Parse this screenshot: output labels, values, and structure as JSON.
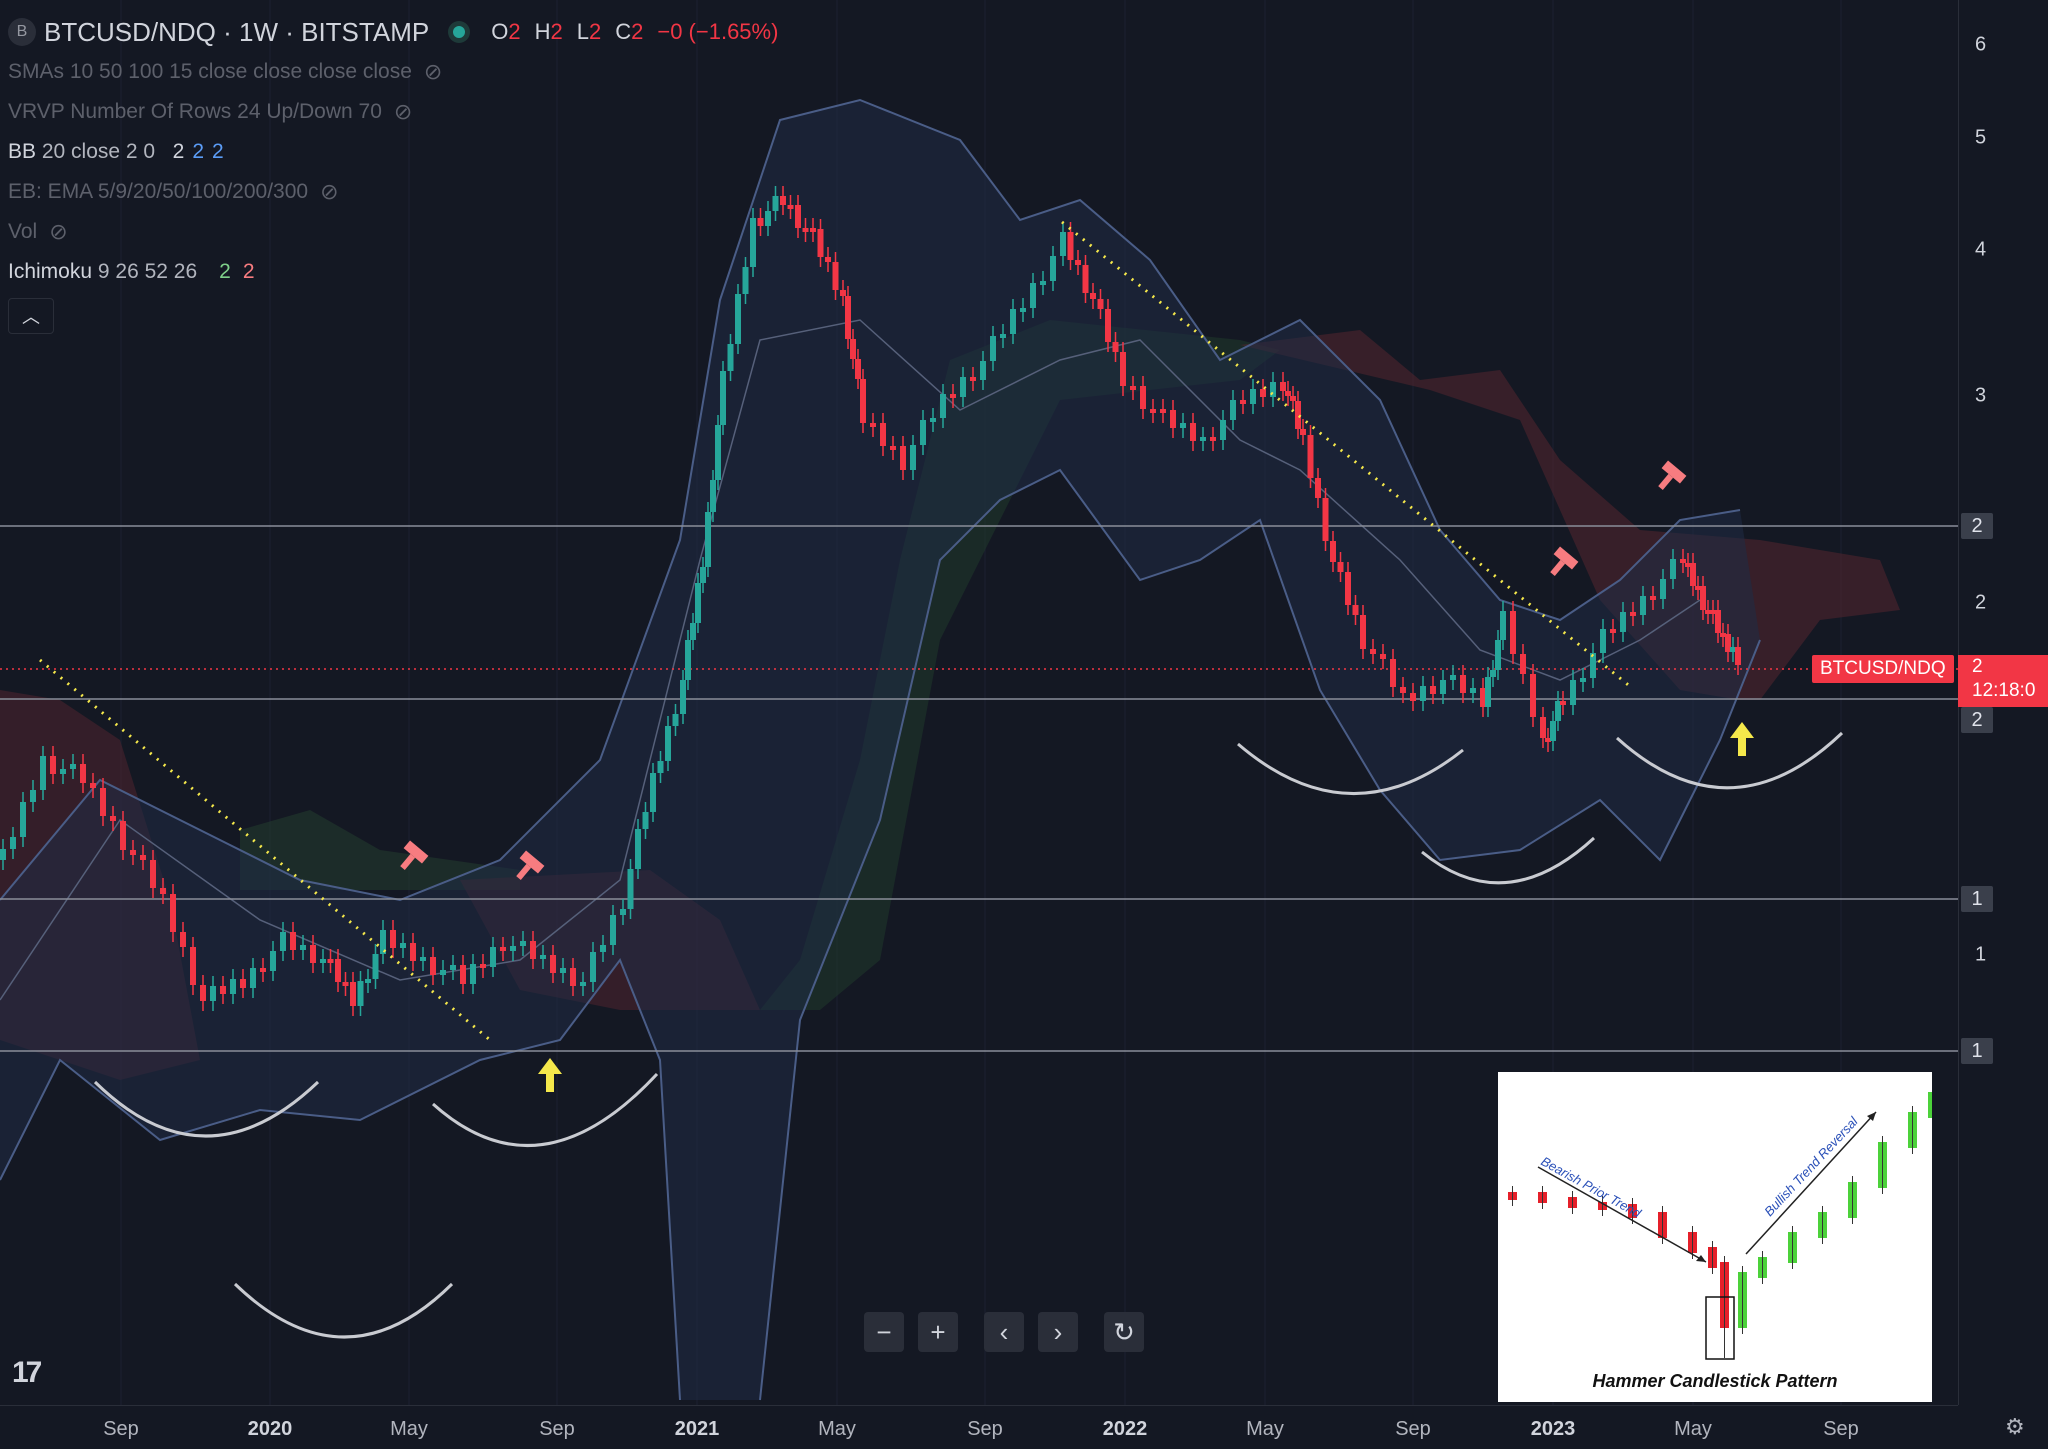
{
  "header": {
    "symbol_badge": "B",
    "title": "BTCUSD/NDQ · 1W · BITSTAMP",
    "ohlc": {
      "o_label": "O",
      "o_val": "2",
      "h_label": "H",
      "h_val": "2",
      "l_label": "L",
      "l_val": "2",
      "c_label": "C",
      "c_val": "2",
      "change": "−0 (−1.65%)"
    }
  },
  "indicators": {
    "smas": "SMAs 10 50 100 15 close close close close",
    "vrvp": "VRVP Number Of Rows 24 Up/Down 70",
    "bb_name": "BB",
    "bb_params": "20 close 2 0",
    "bb_vals": [
      "2",
      "2",
      "2"
    ],
    "eb": "EB: EMA 5/9/20/50/100/200/300",
    "vol": "Vol",
    "ichimoku_name": "Ichimoku",
    "ichimoku_params": "9 26 52 26",
    "ichimoku_v1": "2",
    "ichimoku_v2": "2"
  },
  "price_axis": {
    "ticks": [
      "6",
      "5",
      "4",
      "3",
      "2",
      "2",
      "1"
    ],
    "boxes": [
      "2",
      "2",
      "1",
      "1"
    ],
    "last_price_label": "2",
    "last_price_countdown": "12:18:0"
  },
  "price_label": "BTCUSD/NDQ",
  "time_axis": {
    "labels": [
      {
        "text": "Sep",
        "year": false
      },
      {
        "text": "2020",
        "year": true
      },
      {
        "text": "May",
        "year": false
      },
      {
        "text": "Sep",
        "year": false
      },
      {
        "text": "2021",
        "year": true
      },
      {
        "text": "May",
        "year": false
      },
      {
        "text": "Sep",
        "year": false
      },
      {
        "text": "2022",
        "year": true
      },
      {
        "text": "May",
        "year": false
      },
      {
        "text": "Sep",
        "year": false
      },
      {
        "text": "2023",
        "year": true
      },
      {
        "text": "May",
        "year": false
      },
      {
        "text": "Sep",
        "year": false
      }
    ]
  },
  "nav": {
    "zoom_out": "−",
    "zoom_in": "+",
    "prev": "‹",
    "next": "›",
    "reset": "↻"
  },
  "inset": {
    "caption": "Hammer Candlestick Pattern",
    "bearish_label": "Bearish Prior Trend",
    "bullish_label": "Bullish Trend Reversal"
  },
  "logo": "17",
  "colors": {
    "up": "#26a69a",
    "down": "#f23645",
    "accent": "#2962ff"
  }
}
